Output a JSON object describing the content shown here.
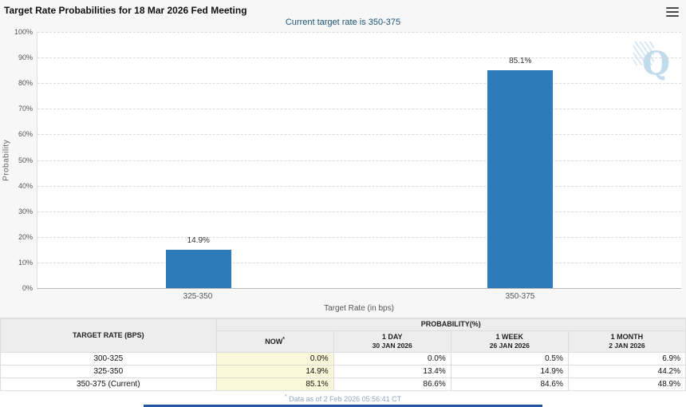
{
  "header": {
    "menu_icon": "hamburger-icon"
  },
  "chart_data": {
    "type": "bar",
    "title": "Target Rate Probabilities for 18 Mar 2026 Fed Meeting",
    "subtitle": "Current target rate is 350-375",
    "categories": [
      "325-350",
      "350-375"
    ],
    "values": [
      14.9,
      85.1
    ],
    "bar_labels": [
      "14.9%",
      "85.1%"
    ],
    "xlabel": "Target Rate (in bps)",
    "ylabel": "Probability",
    "ylim": [
      0,
      100
    ],
    "y_tick_labels": [
      "100%",
      "90%",
      "80%",
      "70%",
      "60%",
      "50%",
      "40%",
      "30%",
      "20%",
      "10%",
      "0%"
    ],
    "grid": "horizontal-dashed",
    "legend": "none",
    "bar_color": "#2d7cb9"
  },
  "watermark": {
    "letter": "Q"
  },
  "table": {
    "col1_header": "TARGET RATE (BPS)",
    "group_header": "PROBABILITY(%)",
    "sub_headers": [
      {
        "line1": "NOW",
        "sup": "*",
        "line2": ""
      },
      {
        "line1": "1 DAY",
        "sup": "",
        "line2": "30 JAN 2026"
      },
      {
        "line1": "1 WEEK",
        "sup": "",
        "line2": "26 JAN 2026"
      },
      {
        "line1": "1 MONTH",
        "sup": "",
        "line2": "2 JAN 2026"
      }
    ],
    "rows": [
      [
        "300-325",
        "0.0%",
        "0.0%",
        "0.5%",
        "6.9%"
      ],
      [
        "325-350",
        "14.9%",
        "13.4%",
        "14.9%",
        "44.2%"
      ],
      [
        "350-375 (Current)",
        "85.1%",
        "86.6%",
        "84.6%",
        "48.9%"
      ]
    ]
  },
  "footer": {
    "note_marker": "*",
    "note": "Data as of 2 Feb 2026 05:56:41 CT"
  },
  "colors": {
    "bar": "#2d7cb9",
    "now_column_highlight": "#fbf8d9",
    "footer_bar": "#2456a0"
  }
}
